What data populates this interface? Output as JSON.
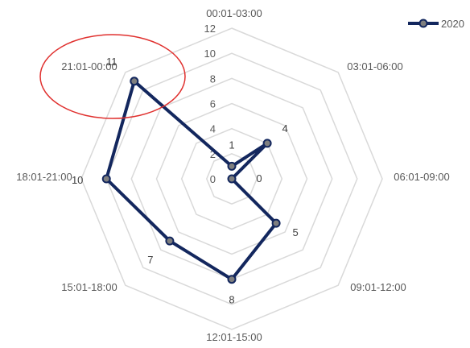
{
  "chart_data": {
    "type": "radar",
    "categories": [
      "00:01-03:00",
      "03:01-06:00",
      "06:01-09:00",
      "09:01-12:00",
      "12:01-15:00",
      "15:01-18:00",
      "18:01-21:00",
      "21:01-00:00"
    ],
    "series": [
      {
        "name": "2020",
        "values": [
          1,
          4,
          0,
          5,
          8,
          7,
          10,
          11
        ]
      }
    ],
    "rlim": [
      0,
      12
    ],
    "ticks": [
      0,
      2,
      4,
      6,
      8,
      10,
      12
    ],
    "grid": true,
    "legend": "top-right",
    "highlight": {
      "category": "21:01-00:00",
      "shape": "ellipse",
      "color": "#e0302e"
    }
  },
  "colors": {
    "series": "#13275e",
    "marker_fill": "#7f7f7f",
    "grid": "#d9d9d9"
  }
}
